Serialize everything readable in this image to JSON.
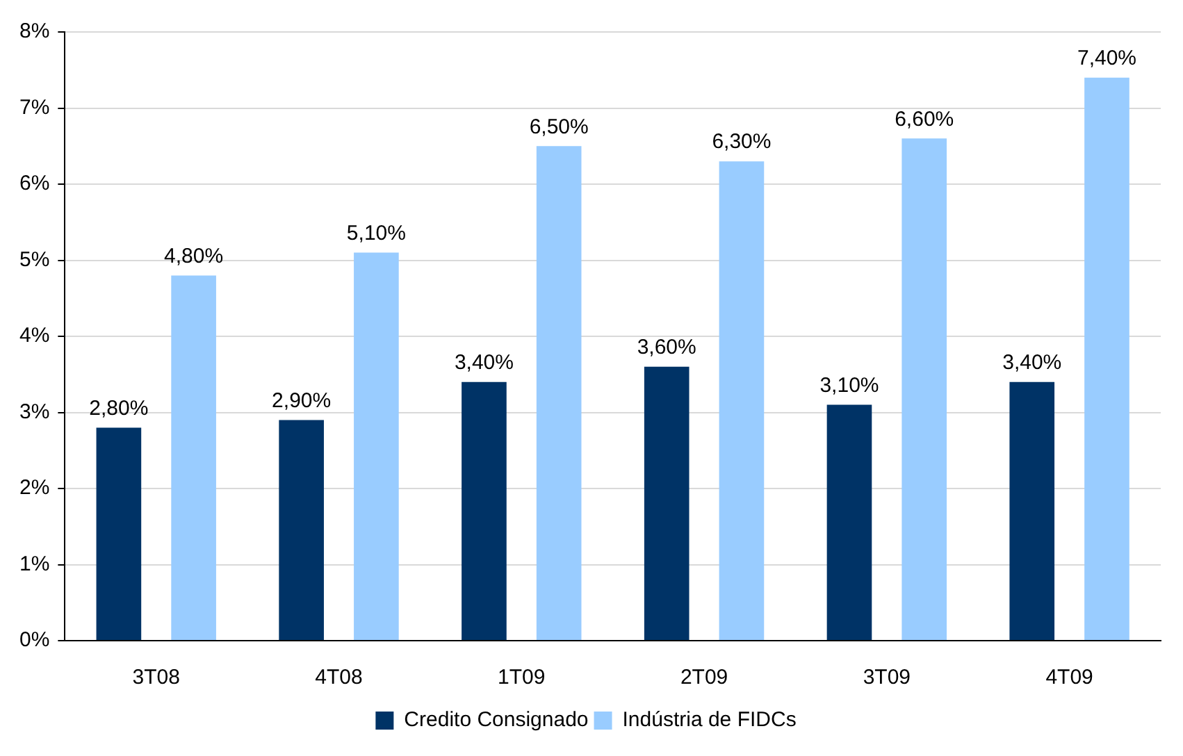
{
  "chart_data": {
    "type": "bar",
    "categories": [
      "3T08",
      "4T08",
      "1T09",
      "2T09",
      "3T09",
      "4T09"
    ],
    "series": [
      {
        "name": "Credito Consignado",
        "color": "#003366",
        "values": [
          2.8,
          2.9,
          3.4,
          3.6,
          3.1,
          3.4
        ],
        "value_labels": [
          "2,80%",
          "2,90%",
          "3,40%",
          "3,60%",
          "3,10%",
          "3,40%"
        ]
      },
      {
        "name": "Indústria de FIDCs",
        "color": "#99ccff",
        "values": [
          4.8,
          5.1,
          6.5,
          6.3,
          6.6,
          7.4
        ],
        "value_labels": [
          "4,80%",
          "5,10%",
          "6,50%",
          "6,30%",
          "6,60%",
          "7,40%"
        ]
      }
    ],
    "ylim": [
      0,
      8
    ],
    "yticks": [
      {
        "value": 0,
        "label": "0%"
      },
      {
        "value": 1,
        "label": "1%"
      },
      {
        "value": 2,
        "label": "2%"
      },
      {
        "value": 3,
        "label": "3%"
      },
      {
        "value": 4,
        "label": "4%"
      },
      {
        "value": 5,
        "label": "5%"
      },
      {
        "value": 6,
        "label": "6%"
      },
      {
        "value": 7,
        "label": "7%"
      },
      {
        "value": 8,
        "label": "8%"
      }
    ],
    "grid": "y",
    "legend": "bottom"
  }
}
